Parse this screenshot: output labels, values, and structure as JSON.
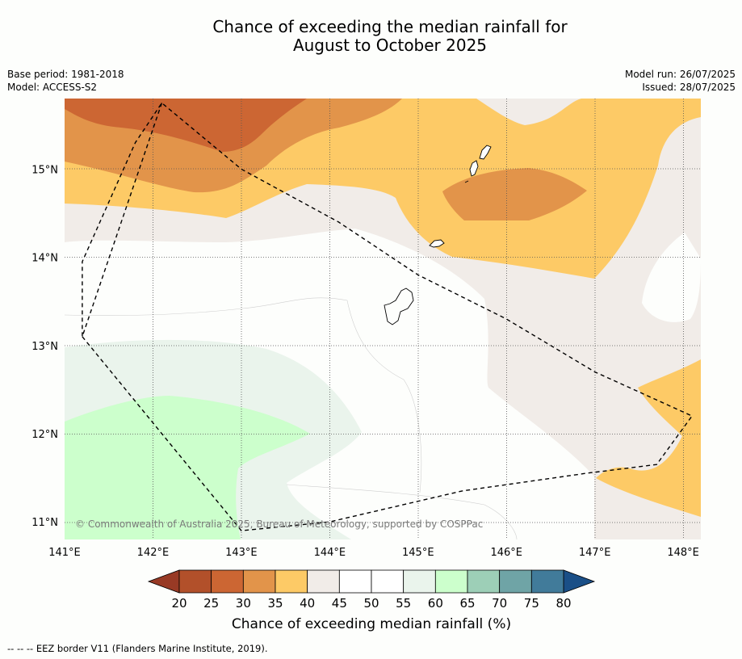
{
  "title": {
    "line1": "Chance of exceeding the median rainfall for",
    "line2": "August to October 2025"
  },
  "meta": {
    "base_period": "Base period: 1981-2018",
    "model": "Model: ACCESS-S2",
    "model_run": "Model run: 26/07/2025",
    "issued": "Issued: 28/07/2025"
  },
  "copyright": "© Commonwealth of Australia 2025, Bureau of Meteorology, supported by COSPPac",
  "footer": "--  --  -- EEZ border V11 (Flanders Marine Institute, 2019).",
  "map": {
    "lon_range": [
      141.0,
      148.2
    ],
    "lat_range": [
      10.8,
      15.8
    ],
    "lon_ticks": [
      141,
      142,
      143,
      144,
      145,
      146,
      147,
      148
    ],
    "lon_labels": [
      "141°E",
      "142°E",
      "143°E",
      "144°E",
      "145°E",
      "146°E",
      "147°E",
      "148°E"
    ],
    "lat_ticks": [
      11,
      12,
      13,
      14,
      15
    ],
    "lat_labels": [
      "11°N",
      "12°N",
      "13°N",
      "14°N",
      "15°N"
    ],
    "gridlines": true,
    "eez_border": [
      [
        142.1,
        15.75
      ],
      [
        141.2,
        13.1
      ],
      [
        141.2,
        13.95
      ],
      [
        141.8,
        15.3
      ],
      [
        142.1,
        15.75
      ],
      [
        143.0,
        15.0
      ],
      [
        144.1,
        14.4
      ],
      [
        145.0,
        13.8
      ],
      [
        146.0,
        13.3
      ],
      [
        147.0,
        12.7
      ],
      [
        148.1,
        12.2
      ],
      [
        147.7,
        11.65
      ],
      [
        146.9,
        11.55
      ],
      [
        145.5,
        11.35
      ],
      [
        144.0,
        11.0
      ],
      [
        143.0,
        10.9
      ],
      [
        141.2,
        13.1
      ]
    ]
  },
  "colorbar": {
    "label": "Chance of exceeding median rainfall (%)",
    "ticks": [
      "20",
      "25",
      "30",
      "35",
      "40",
      "45",
      "50",
      "55",
      "60",
      "65",
      "70",
      "75",
      "80"
    ],
    "colors": [
      "#b2502a",
      "#cc6633",
      "#e2944a",
      "#fdca66",
      "#f1ece8",
      "#ffffff",
      "#ffffff",
      "#eaf4ec",
      "#ccffcc",
      "#9dcfb7",
      "#6fa4a6",
      "#417b9a"
    ],
    "under_color": "#983a25",
    "over_color": "#1a4f87"
  }
}
